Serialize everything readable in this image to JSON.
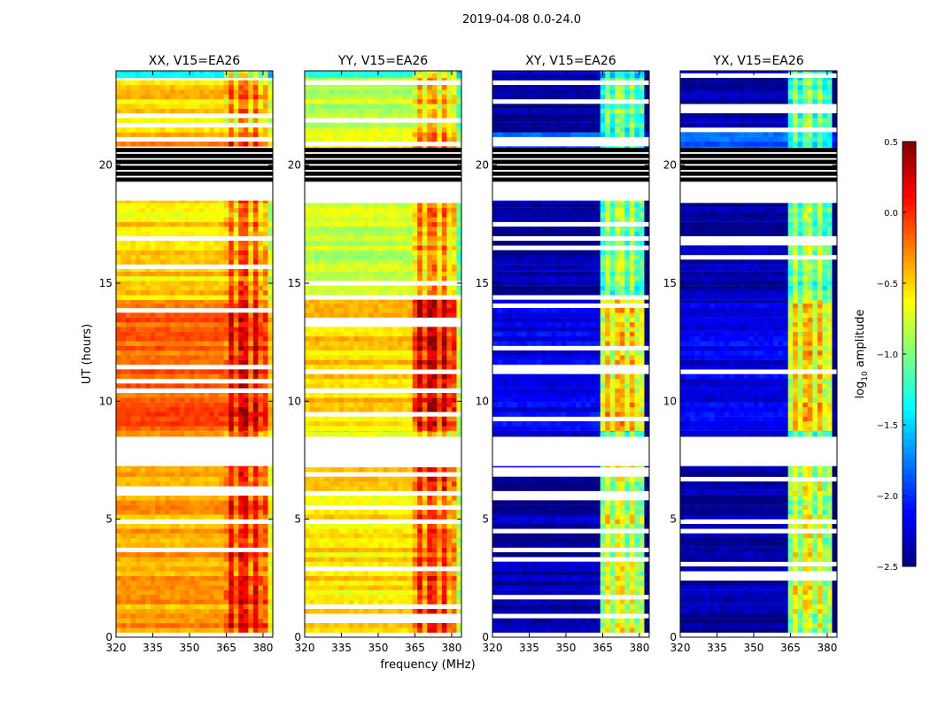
{
  "chart_data": {
    "type": "heatmap",
    "title": "2019-04-08 0.0-24.0",
    "xlabel": "frequency (MHz)",
    "ylabel": "UT (hours)",
    "xlim": [
      320,
      384
    ],
    "ylim": [
      0,
      24
    ],
    "xticks": [
      320,
      335,
      350,
      365,
      380
    ],
    "yticks": [
      0,
      5,
      10,
      15,
      20
    ],
    "colorbar": {
      "label_main": "log",
      "label_sub": "10",
      "label_rest": " amplitude",
      "range": [
        -2.5,
        0.5
      ],
      "ticks": [
        "0.5",
        "0.0",
        "−0.5",
        "−1.0",
        "−1.5",
        "−2.0",
        "−2.5"
      ],
      "tick_values": [
        0.5,
        0.0,
        -0.5,
        -1.0,
        -1.5,
        -2.0,
        -2.5
      ],
      "colormap": "jet"
    },
    "high_band_mhz": [
      363,
      381
    ],
    "flagged_hours": [
      [
        7.25,
        8.5
      ],
      [
        18.5,
        19.3
      ]
    ],
    "black_hours": [
      [
        19.3,
        20.6
      ]
    ],
    "panels": [
      {
        "title": "XX, V15=EA26",
        "segments": [
          [
            0,
            7.25,
            -0.35,
            0.15
          ],
          [
            8.5,
            8.75,
            -0.3,
            0.0
          ],
          [
            8.75,
            14.3,
            -0.15,
            0.25
          ],
          [
            14.3,
            15.6,
            -0.5,
            -0.05
          ],
          [
            15.6,
            18.5,
            -0.55,
            -0.1
          ],
          [
            20.6,
            21.4,
            -0.3,
            0.1
          ],
          [
            21.4,
            23.7,
            -0.5,
            -0.15
          ],
          [
            23.7,
            24,
            -1.4,
            -0.6
          ]
        ]
      },
      {
        "title": "YY, V15=EA26",
        "segments": [
          [
            0,
            7.25,
            -0.55,
            0.05
          ],
          [
            8.5,
            8.75,
            -0.55,
            -0.2
          ],
          [
            8.75,
            14.3,
            -0.5,
            0.3
          ],
          [
            14.3,
            15.6,
            -0.8,
            -0.25
          ],
          [
            15.6,
            18.5,
            -0.8,
            -0.2
          ],
          [
            20.6,
            21.4,
            -0.6,
            0.0
          ],
          [
            21.4,
            23.7,
            -0.8,
            -0.3
          ],
          [
            23.7,
            24,
            -1.4,
            -0.7
          ]
        ]
      },
      {
        "title": "XY, V15=EA26",
        "segments": [
          [
            0,
            7.25,
            -2.4,
            -0.6
          ],
          [
            8.5,
            8.75,
            -2.4,
            -1.0
          ],
          [
            8.75,
            14.3,
            -2.2,
            -0.4
          ],
          [
            14.3,
            15.6,
            -2.35,
            -0.8
          ],
          [
            15.6,
            18.5,
            -2.4,
            -0.8
          ],
          [
            20.6,
            21.4,
            -1.8,
            -1.0
          ],
          [
            21.4,
            23.7,
            -2.4,
            -0.9
          ],
          [
            23.7,
            24,
            -2.3,
            -1.2
          ]
        ]
      },
      {
        "title": "YX, V15=EA26",
        "segments": [
          [
            0,
            7.25,
            -2.4,
            -0.6
          ],
          [
            8.5,
            8.75,
            -2.4,
            -1.0
          ],
          [
            8.75,
            14.3,
            -2.2,
            -0.4
          ],
          [
            14.3,
            15.6,
            -2.35,
            -0.8
          ],
          [
            15.6,
            18.5,
            -2.4,
            -0.8
          ],
          [
            20.6,
            21.4,
            -1.8,
            -1.0
          ],
          [
            21.4,
            23.7,
            -2.4,
            -0.9
          ],
          [
            23.7,
            24,
            -2.3,
            -1.2
          ]
        ]
      }
    ]
  }
}
